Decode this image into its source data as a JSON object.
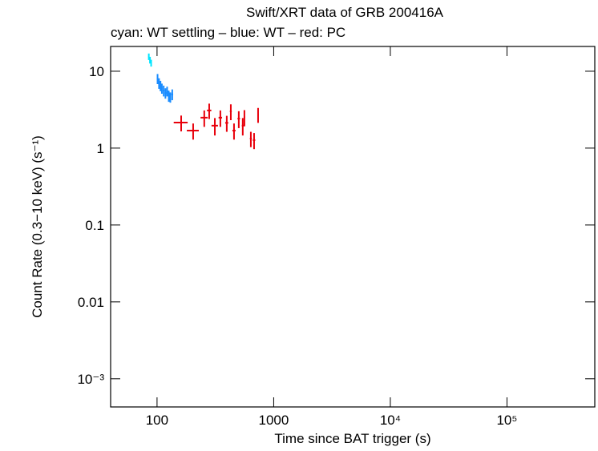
{
  "chart_data": {
    "type": "scatter",
    "title": "Swift/XRT data of GRB 200416A",
    "subtitle": "cyan: WT settling – blue: WT – red: PC",
    "x_label": "Time since BAT trigger (s)",
    "y_label": "Count Rate (0.3−10 keV) (s⁻¹)",
    "log_x": true,
    "log_y": true,
    "xlim": [
      40,
      566000
    ],
    "ylim": [
      0.00043,
      21
    ],
    "xticks": [
      100,
      1000,
      {
        "value": 10000,
        "label": "10⁴"
      },
      {
        "value": 100000,
        "label": "10⁵"
      }
    ],
    "yticks": [
      {
        "value": 0.001,
        "label": "10⁻³"
      },
      0.01,
      0.1,
      1,
      10
    ],
    "series": [
      {
        "color": "#00e5ff",
        "x": [
          85,
          87,
          89
        ],
        "values": [
          15.5,
          14,
          12.8
        ],
        "xerr": [
          1,
          1,
          1
        ],
        "yerr": [
          1.5,
          1.4,
          1.3
        ]
      },
      {
        "color": "#1a8cff",
        "x": [
          101,
          104,
          107,
          110,
          114,
          118,
          122,
          126,
          130,
          135
        ],
        "values": [
          8,
          7,
          6.5,
          6,
          5.6,
          5.2,
          5.5,
          4.8,
          4.6,
          5.0
        ],
        "xerr": [
          1.5,
          1.5,
          1.5,
          1.5,
          2,
          2,
          2,
          2,
          2,
          2.5
        ],
        "yerr": [
          1.2,
          1.1,
          1,
          0.9,
          0.9,
          0.8,
          0.8,
          0.8,
          0.7,
          0.8
        ]
      },
      {
        "color": "#e8000b",
        "x": [
          161,
          204,
          254,
          280,
          313,
          349,
          396,
          429,
          457,
          502,
          543,
          561,
          637,
          679,
          735
        ],
        "values": [
          2.15,
          1.69,
          2.49,
          3.09,
          1.96,
          2.49,
          2.13,
          3.01,
          1.69,
          2.42,
          1.96,
          2.52,
          1.33,
          1.27,
          2.73
        ],
        "xerr": [
          22,
          24,
          18,
          12,
          20,
          12,
          12,
          8,
          14,
          12,
          10,
          8,
          12,
          16,
          8
        ],
        "yerr": [
          0.5,
          0.4,
          0.6,
          0.7,
          0.5,
          0.6,
          0.5,
          0.7,
          0.4,
          0.6,
          0.5,
          0.6,
          0.3,
          0.3,
          0.6
        ]
      }
    ]
  }
}
